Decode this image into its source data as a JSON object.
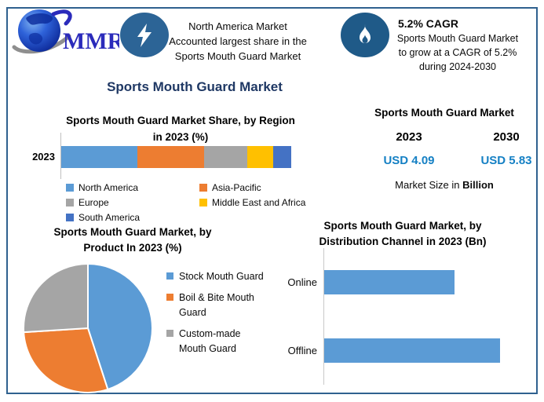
{
  "logo": {
    "text": "MMR"
  },
  "header": {
    "highlight": {
      "lines": [
        "North America Market",
        "Accounted largest share in the",
        "Sports Mouth Guard Market"
      ]
    },
    "cagr": {
      "title": "5.2% CAGR",
      "lines": [
        "Sports Mouth Guard Market",
        "to grow at a CAGR of 5.2%",
        "during 2024-2030"
      ]
    }
  },
  "main_title": "Sports Mouth Guard Market",
  "region_section": {
    "title_line1": "Sports Mouth Guard Market Share, by Region",
    "title_line2": "in 2023 (%)"
  },
  "market_size": {
    "title": "Sports Mouth Guard Market",
    "year_left": "2023",
    "year_right": "2030",
    "value_left": "USD 4.09",
    "value_right": "USD 5.83",
    "caption_prefix": "Market Size in ",
    "caption_bold": "Billion",
    "value_color": "#1580C4"
  },
  "product_section": {
    "title_line1": "Sports Mouth Guard Market, by",
    "title_line2": "Product In 2023 (%)"
  },
  "distribution_section": {
    "title_line1": "Sports Mouth Guard Market, by",
    "title_line2": "Distribution Channel in 2023 (Bn)"
  },
  "chart_data": [
    {
      "id": "region_share",
      "type": "bar",
      "stacked": true,
      "orientation": "horizontal",
      "title": "Sports Mouth Guard Market Share, by Region in 2023 (%)",
      "categories": [
        "2023"
      ],
      "series": [
        {
          "name": "North America",
          "values": [
            33
          ],
          "color": "#5B9BD5"
        },
        {
          "name": "Asia-Pacific",
          "values": [
            29
          ],
          "color": "#ED7D31"
        },
        {
          "name": "Europe",
          "values": [
            19
          ],
          "color": "#A5A5A5"
        },
        {
          "name": "Middle East and Africa",
          "values": [
            11
          ],
          "color": "#FFC000"
        },
        {
          "name": "South America",
          "values": [
            8
          ],
          "color": "#4472C4"
        }
      ],
      "unit": "%",
      "legend_position": "bottom"
    },
    {
      "id": "product_share",
      "type": "pie",
      "title": "Sports Mouth Guard Market, by Product In 2023 (%)",
      "labels": [
        "Stock Mouth Guard",
        "Boil & Bite Mouth Guard",
        "Custom-made Mouth Guard"
      ],
      "values": [
        45,
        29,
        26
      ],
      "colors": [
        "#5B9BD5",
        "#ED7D31",
        "#A5A5A5"
      ],
      "legend_position": "right"
    },
    {
      "id": "distribution_channel",
      "type": "bar",
      "orientation": "horizontal",
      "title": "Sports Mouth Guard Market, by Distribution Channel in 2023 (Bn)",
      "categories": [
        "Online",
        "Offline"
      ],
      "values": [
        1.74,
        2.35
      ],
      "unit": "Bn",
      "color": "#5B9BD5"
    }
  ],
  "colors": {
    "border": "#2F618F",
    "title_navy": "#1F3864",
    "badge_bolt": "#2C6496",
    "badge_flame": "#1F5A88",
    "bar_blue": "#5B9BD5"
  }
}
